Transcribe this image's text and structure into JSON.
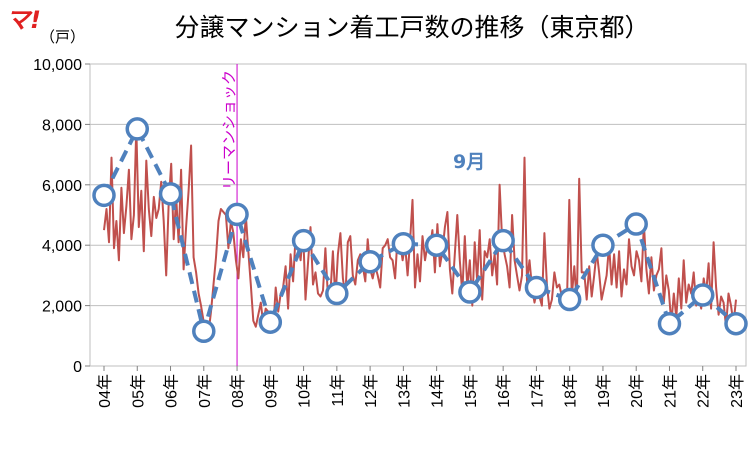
{
  "logo": "マ!",
  "chart_data": {
    "type": "line",
    "title": "分譲マンション着工戸数の推移（東京都）",
    "unit_label": "（戸）",
    "ylim": [
      0,
      10000
    ],
    "y_ticks": [
      "0",
      "2,000",
      "4,000",
      "6,000",
      "8,000",
      "10,000"
    ],
    "y_tick_values": [
      0,
      2000,
      4000,
      6000,
      8000,
      10000
    ],
    "x_labels": [
      "04年",
      "05年",
      "06年",
      "07年",
      "08年",
      "09年",
      "10年",
      "11年",
      "12年",
      "13年",
      "14年",
      "15年",
      "16年",
      "17年",
      "18年",
      "19年",
      "20年",
      "21年",
      "22年",
      "23年"
    ],
    "grid": true,
    "event_annotation": {
      "label": "リーマンショック",
      "at_year": "08年"
    },
    "series_label": "9月",
    "series": [
      {
        "role": "monthly",
        "color": "#c0504d",
        "values": [
          4500,
          5200,
          4100,
          6900,
          3900,
          4800,
          3500,
          5900,
          4400,
          5300,
          6500,
          4200,
          5000,
          7900,
          4600,
          5800,
          3800,
          6800,
          5200,
          4300,
          5600,
          4900,
          5200,
          6100,
          4800,
          3000,
          5400,
          6700,
          4200,
          5600,
          4100,
          6500,
          3200,
          4600,
          5800,
          7300,
          3600,
          3100,
          2400,
          2000,
          1500,
          1300,
          1100,
          1800,
          2700,
          3600,
          4800,
          5200,
          5100,
          5000,
          3900,
          4800,
          4400,
          3500,
          2900,
          4200,
          3600,
          5000,
          3800,
          2700,
          1500,
          1300,
          1700,
          2100,
          1400,
          1900,
          1800,
          1500,
          1200,
          2600,
          1800,
          2400,
          2600,
          3300,
          1900,
          3700,
          2800,
          4300,
          4100,
          3500,
          4500,
          2200,
          3400,
          4600,
          2700,
          3100,
          2400,
          2300,
          2500,
          3900,
          2300,
          2400,
          3800,
          2200,
          3700,
          4400,
          2900,
          2300,
          4100,
          4300,
          3000,
          2700,
          3500,
          3700,
          3300,
          2800,
          4200,
          3200,
          2900,
          3300,
          3000,
          2600,
          3900,
          4000,
          4200,
          3600,
          3500,
          2900,
          4300,
          4100,
          3500,
          4000,
          3000,
          4100,
          5500,
          2600,
          3700,
          2800,
          4300,
          3500,
          4000,
          3900,
          4500,
          3100,
          4700,
          3300,
          3800,
          4600,
          5100,
          3200,
          2400,
          3700,
          5000,
          3500,
          2400,
          4300,
          2600,
          3500,
          2000,
          4100,
          2800,
          4500,
          2200,
          3800,
          3600,
          4200,
          3000,
          3700,
          2700,
          6000,
          4200,
          3700,
          3300,
          2600,
          5000,
          3500,
          3000,
          2500,
          3000,
          6900,
          2800,
          3500,
          2600,
          2100,
          2500,
          2300,
          2000,
          4400,
          2700,
          1900,
          2200,
          3100,
          2600,
          2700,
          2300,
          2200,
          1900,
          5500,
          2300,
          3300,
          2100,
          6200,
          3100,
          3100,
          2200,
          3300,
          2300,
          3000,
          3800,
          3100,
          2200,
          2600,
          3000,
          4000,
          2700,
          3700,
          2600,
          3800,
          2300,
          3200,
          2700,
          4200,
          3300,
          3000,
          3800,
          3500,
          2800,
          4700,
          3200,
          2400,
          3600,
          2500,
          3000,
          3200,
          3900,
          2100,
          3000,
          2500,
          1400,
          2400,
          1600,
          2900,
          1900,
          3500,
          2100,
          2700,
          2400,
          3100,
          2000,
          2300,
          1900,
          2900,
          2400,
          3400,
          1900,
          4100,
          2600,
          1700,
          2300,
          2100,
          1300,
          2400,
          2000,
          1400,
          2200
        ]
      },
      {
        "role": "september",
        "name": "9月",
        "color": "#4f81bd",
        "values": [
          5650,
          7850,
          5700,
          1150,
          5020,
          1450,
          4150,
          2400,
          3450,
          4050,
          4000,
          2450,
          4150,
          2600,
          2200,
          4000,
          4700,
          1400,
          2350,
          1400
        ]
      }
    ]
  }
}
